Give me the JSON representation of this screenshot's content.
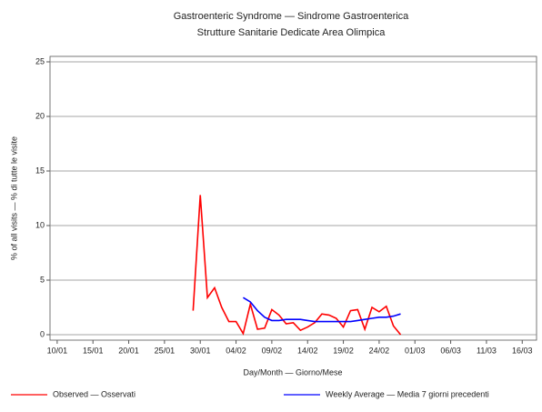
{
  "chart_data": {
    "type": "line",
    "title": "Gastroenteric Syndrome — Sindrome Gastroenterica",
    "subtitle": "Strutture Sanitarie Dedicate Area Olimpica",
    "x_label": "Day/Month — Giorno/Mese",
    "y_label": "% of all visits — % di tutte le visite",
    "xlim": [
      9,
      77
    ],
    "ylim": [
      -0.5,
      25.5
    ],
    "xticks": [
      {
        "value": 10,
        "label": "10/01"
      },
      {
        "value": 15,
        "label": "15/01"
      },
      {
        "value": 20,
        "label": "20/01"
      },
      {
        "value": 25,
        "label": "25/01"
      },
      {
        "value": 30,
        "label": "30/01"
      },
      {
        "value": 35,
        "label": "04/02"
      },
      {
        "value": 40,
        "label": "09/02"
      },
      {
        "value": 45,
        "label": "14/02"
      },
      {
        "value": 50,
        "label": "19/02"
      },
      {
        "value": 55,
        "label": "24/02"
      },
      {
        "value": 60,
        "label": "01/03"
      },
      {
        "value": 65,
        "label": "06/03"
      },
      {
        "value": 70,
        "label": "11/03"
      },
      {
        "value": 75,
        "label": "16/03"
      }
    ],
    "yticks": [
      0,
      5,
      10,
      15,
      20,
      25
    ],
    "grid": true,
    "series": [
      {
        "name": "Observed — Osservati",
        "color": "#ff0000",
        "x": [
          29,
          30,
          31,
          32,
          33,
          34,
          35,
          36,
          37,
          38,
          39,
          40,
          41,
          42,
          43,
          44,
          45,
          46,
          47,
          48,
          49,
          50,
          51,
          52,
          53,
          54,
          55,
          56,
          57,
          58
        ],
        "values": [
          2.2,
          12.8,
          3.4,
          4.3,
          2.5,
          1.2,
          1.2,
          0.1,
          2.8,
          0.5,
          0.6,
          2.3,
          1.8,
          1.0,
          1.1,
          0.4,
          0.7,
          1.1,
          1.9,
          1.8,
          1.5,
          0.7,
          2.2,
          2.3,
          0.5,
          2.5,
          2.1,
          2.6,
          0.8,
          0.0
        ]
      },
      {
        "name": "Weekly Average — Media 7 giorni precedenti",
        "color": "#0000ff",
        "x": [
          36,
          37,
          38,
          39,
          40,
          41,
          42,
          43,
          44,
          45,
          46,
          47,
          48,
          49,
          50,
          51,
          52,
          53,
          54,
          55,
          56,
          57,
          58
        ],
        "values": [
          3.4,
          3.0,
          2.2,
          1.6,
          1.3,
          1.3,
          1.4,
          1.4,
          1.4,
          1.3,
          1.2,
          1.2,
          1.2,
          1.2,
          1.2,
          1.2,
          1.3,
          1.4,
          1.5,
          1.6,
          1.6,
          1.7,
          1.9
        ]
      }
    ]
  }
}
